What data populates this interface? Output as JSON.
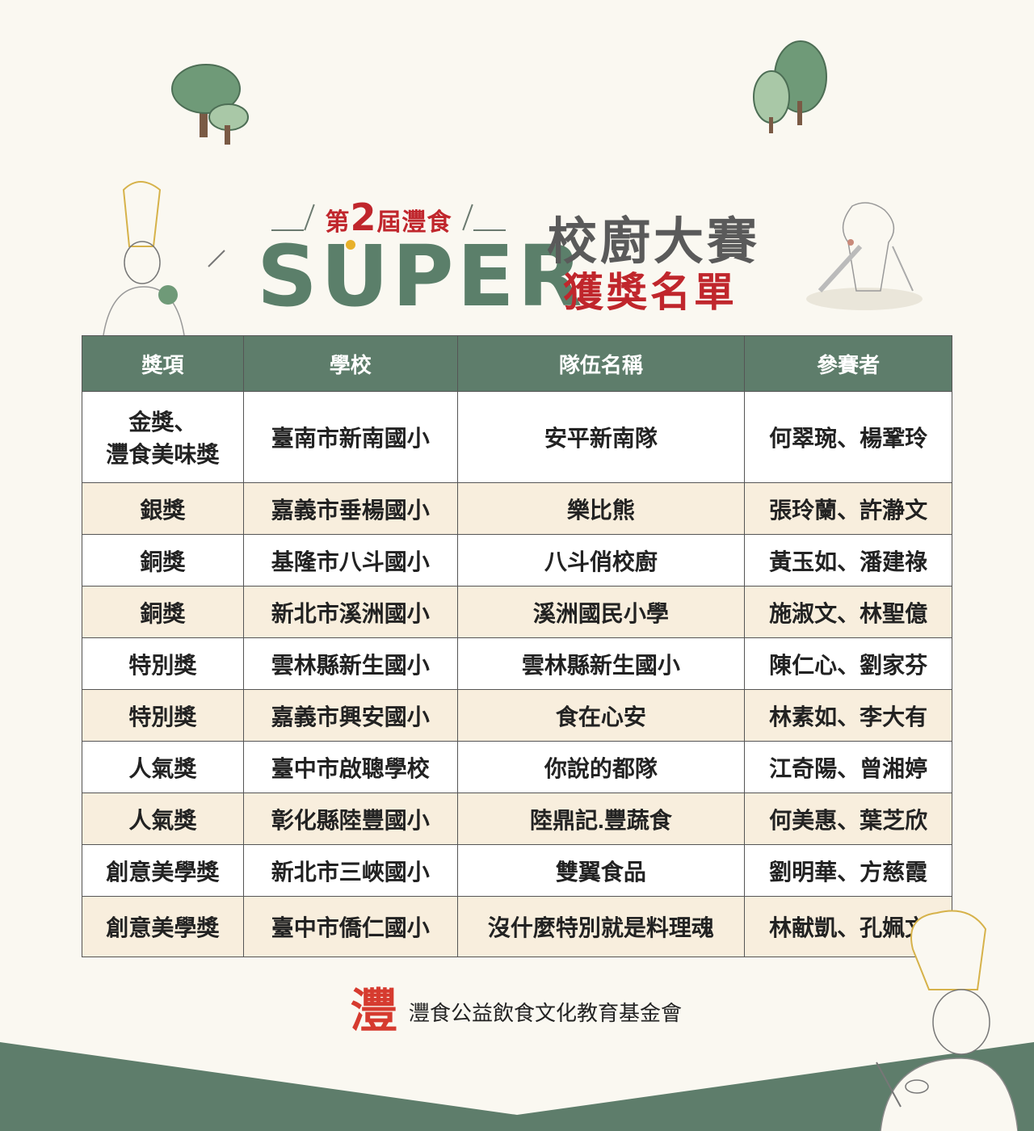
{
  "header": {
    "edition_prefix": "第",
    "edition_number": "2",
    "edition_suffix": "屆灃食",
    "brand": "SUPER",
    "title": "校廚大賽",
    "subtitle": "獲獎名單"
  },
  "table": {
    "columns": [
      "獎項",
      "學校",
      "隊伍名稱",
      "參賽者"
    ],
    "rows": [
      {
        "award_line1": "金獎、",
        "award_line2": "灃食美味獎",
        "school": "臺南市新南國小",
        "team": "安平新南隊",
        "members": "何翠琬、楊鞏玲"
      },
      {
        "award": "銀獎",
        "school": "嘉義市垂楊國小",
        "team": "樂比熊",
        "members": "張玲蘭、許瀞文"
      },
      {
        "award": "銅獎",
        "school": "基隆市八斗國小",
        "team": "八斗俏校廚",
        "members": "黃玉如、潘建祿"
      },
      {
        "award": "銅獎",
        "school": "新北市溪洲國小",
        "team": "溪洲國民小學",
        "members": "施淑文、林聖億"
      },
      {
        "award": "特別獎",
        "school": "雲林縣新生國小",
        "team": "雲林縣新生國小",
        "members": "陳仁心、劉家芬"
      },
      {
        "award": "特別獎",
        "school": "嘉義市興安國小",
        "team": "食在心安",
        "members": "林素如、李大有"
      },
      {
        "award": "人氣獎",
        "school": "臺中市啟聰學校",
        "team": "你說的都隊",
        "members": "江奇陽、曾湘婷"
      },
      {
        "award": "人氣獎",
        "school": "彰化縣陸豐國小",
        "team": "陸鼎記.豐蔬食",
        "members": "何美惠、葉芝欣"
      },
      {
        "award": "創意美學獎",
        "school": "新北市三峽國小",
        "team": "雙翼食品",
        "members": "劉明華、方慈霞"
      },
      {
        "award": "創意美學獎",
        "school": "臺中市僑仁國小",
        "team": "沒什麼特別就是料理魂",
        "members": "林献凱、孔姵文"
      }
    ]
  },
  "footer": {
    "logo_char": "灃",
    "organization": "灃食公益飲食文化教育基金會"
  },
  "colors": {
    "green": "#5e7d6b",
    "red": "#c0262c",
    "background": "#faf8f1",
    "row_alt": "#f8eedd"
  }
}
